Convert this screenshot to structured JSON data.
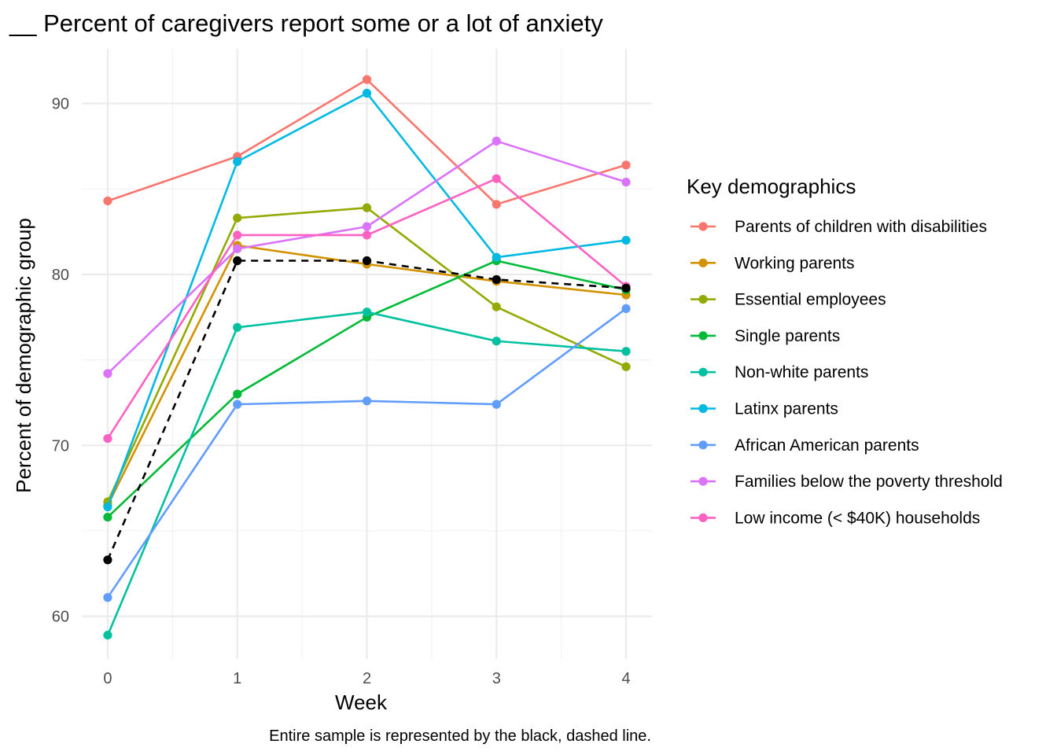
{
  "chart_data": {
    "type": "line",
    "title": "__ Percent of caregivers report some or a lot of anxiety",
    "xlabel": "Week",
    "ylabel": "Percent of demographic group",
    "caption": "Entire sample is represented by the black, dashed line.",
    "x": [
      0,
      1,
      2,
      3,
      4
    ],
    "xticks": [
      "0",
      "1",
      "2",
      "3",
      "4"
    ],
    "yticks": [
      "60",
      "70",
      "80",
      "90"
    ],
    "xlim": [
      -0.2,
      4.2
    ],
    "ylim": [
      57.5,
      93.2
    ],
    "grid": true,
    "legend": {
      "title": "Key demographics",
      "placement": "right"
    },
    "reference_series": {
      "color": "#000000",
      "style": "dashed",
      "values": [
        63.3,
        80.8,
        80.8,
        79.7,
        79.2
      ]
    },
    "series": [
      {
        "name": "Parents of children with disabilities",
        "color": "#F8766D",
        "values": [
          84.3,
          86.9,
          91.4,
          84.1,
          86.4
        ]
      },
      {
        "name": "Working parents",
        "color": "#D39200",
        "values": [
          66.5,
          81.7,
          80.6,
          79.6,
          78.8
        ]
      },
      {
        "name": "Essential employees",
        "color": "#93AA00",
        "values": [
          66.7,
          83.3,
          83.9,
          78.1,
          74.6
        ]
      },
      {
        "name": "Single parents",
        "color": "#00BA38",
        "values": [
          65.8,
          73.0,
          77.5,
          80.8,
          79.1
        ]
      },
      {
        "name": "Non-white parents",
        "color": "#00C19F",
        "values": [
          58.9,
          76.9,
          77.8,
          76.1,
          75.5
        ]
      },
      {
        "name": "Latinx parents",
        "color": "#00B9E3",
        "values": [
          66.4,
          86.6,
          90.6,
          81.0,
          82.0
        ]
      },
      {
        "name": "African American parents",
        "color": "#619CFF",
        "values": [
          61.1,
          72.4,
          72.6,
          72.4,
          78.0
        ]
      },
      {
        "name": "Families below the poverty threshold",
        "color": "#DB72FB",
        "values": [
          74.2,
          81.5,
          82.8,
          87.8,
          85.4
        ]
      },
      {
        "name": "Low income (< $40K) households",
        "color": "#FF61C3",
        "values": [
          70.4,
          82.3,
          82.3,
          85.6,
          79.3
        ]
      }
    ]
  }
}
